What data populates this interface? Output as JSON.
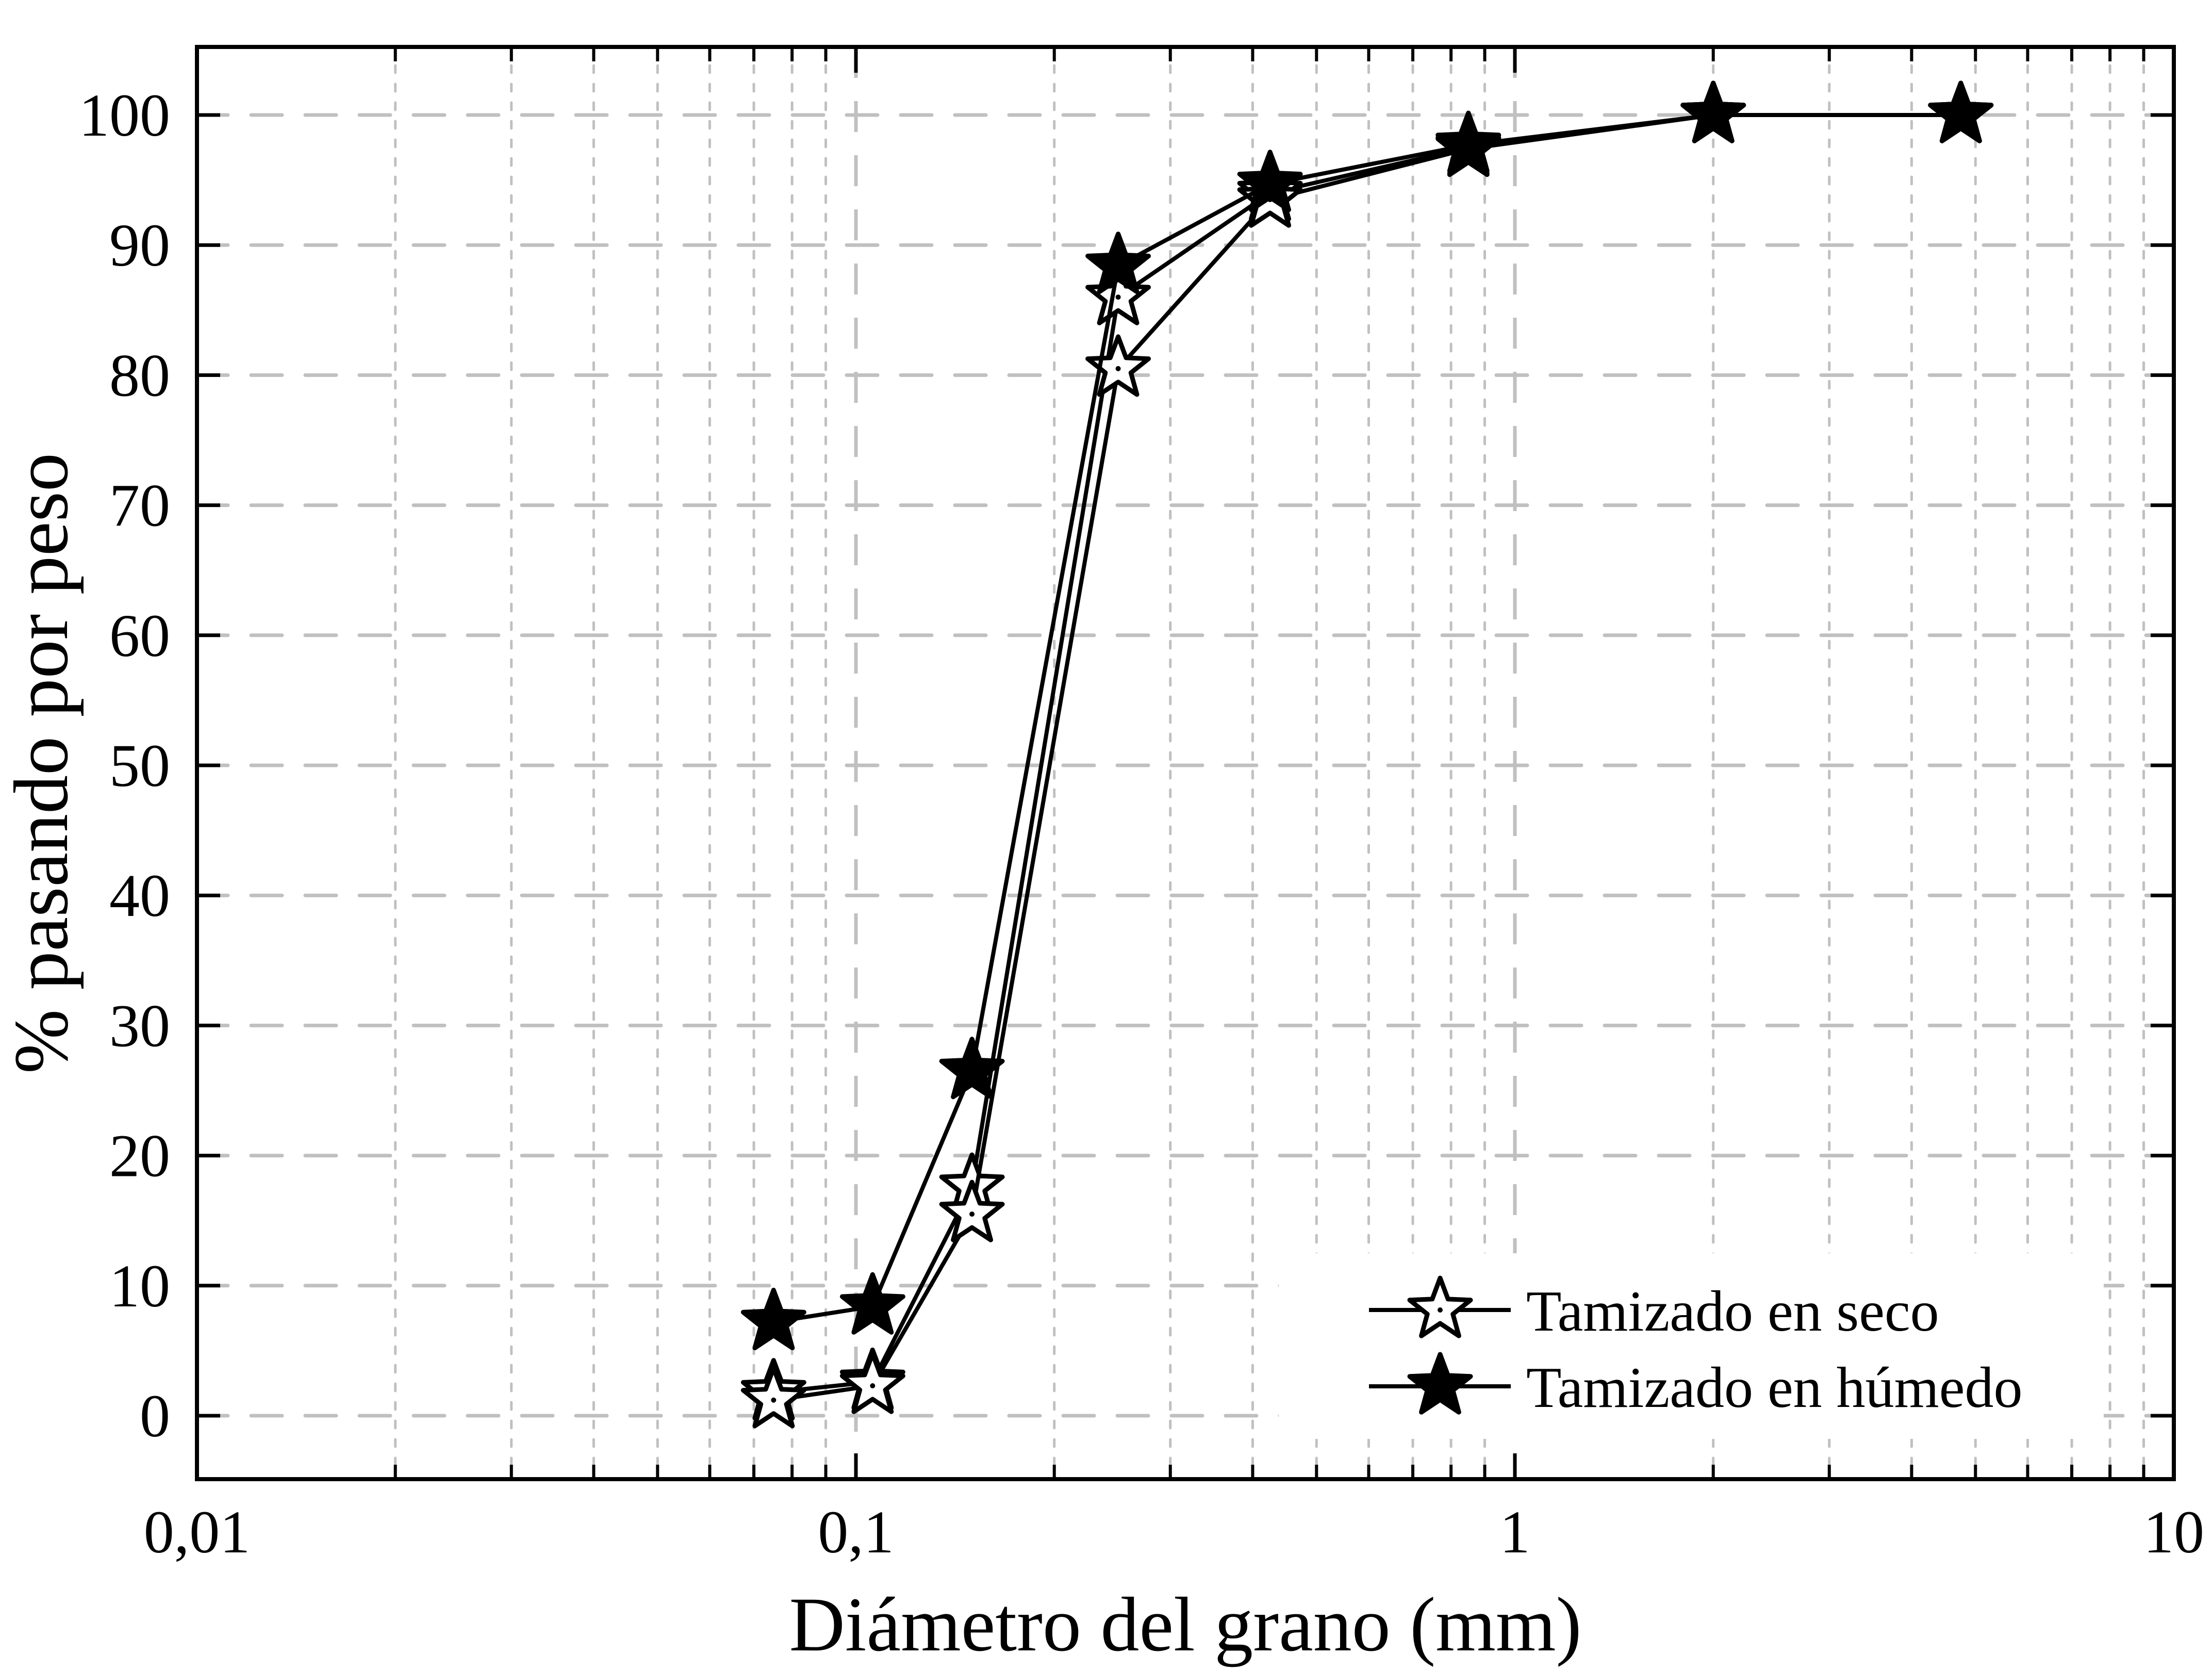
{
  "chart_data": {
    "type": "line",
    "title": "",
    "xlabel": "Diámetro del grano (mm)",
    "ylabel": "% pasando por peso",
    "xscale": "log",
    "xlim": [
      0.01,
      10
    ],
    "ylim": [
      -5,
      105
    ],
    "x_ticks": [
      {
        "value": 0.01,
        "label": "0,01"
      },
      {
        "value": 0.1,
        "label": "0,1"
      },
      {
        "value": 1,
        "label": "1"
      },
      {
        "value": 10,
        "label": "10"
      }
    ],
    "y_ticks": [
      {
        "value": 0,
        "label": "0"
      },
      {
        "value": 10,
        "label": "10"
      },
      {
        "value": 20,
        "label": "20"
      },
      {
        "value": 30,
        "label": "30"
      },
      {
        "value": 40,
        "label": "40"
      },
      {
        "value": 50,
        "label": "50"
      },
      {
        "value": 60,
        "label": "60"
      },
      {
        "value": 70,
        "label": "70"
      },
      {
        "value": 80,
        "label": "80"
      },
      {
        "value": 90,
        "label": "90"
      },
      {
        "value": 100,
        "label": "100"
      }
    ],
    "grid": {
      "major": true,
      "minor": true,
      "style": "dashed",
      "color": "#c0c0c0"
    },
    "legend": {
      "position": "lower right",
      "entries": [
        {
          "label": "Tamizado en seco",
          "marker": "open-star"
        },
        {
          "label": "Tamizado en húmedo",
          "marker": "filled-star"
        }
      ]
    },
    "x": [
      0.075,
      0.106,
      0.15,
      0.25,
      0.425,
      0.85,
      2.0,
      4.75
    ],
    "series": [
      {
        "name": "Tamizado en seco",
        "marker": "open-star",
        "values": [
          1.8,
          2.6,
          17.6,
          86.0,
          94.0,
          97.5,
          100,
          100
        ]
      },
      {
        "name": "Tamizado en seco",
        "marker": "open-star",
        "values": [
          1.2,
          2.3,
          15.5,
          80.5,
          93.5,
          97.4,
          100,
          100
        ]
      },
      {
        "name": "Tamizado en húmedo",
        "marker": "filled-star",
        "values": [
          7.2,
          8.4,
          26.5,
          88.4,
          94.7,
          97.7,
          100,
          100
        ]
      }
    ]
  },
  "colors": {
    "axis": "#000000",
    "grid": "#c0c0c0",
    "line": "#000000",
    "marker_fill_open": "#ffffff",
    "marker_fill_filled": "#000000"
  }
}
